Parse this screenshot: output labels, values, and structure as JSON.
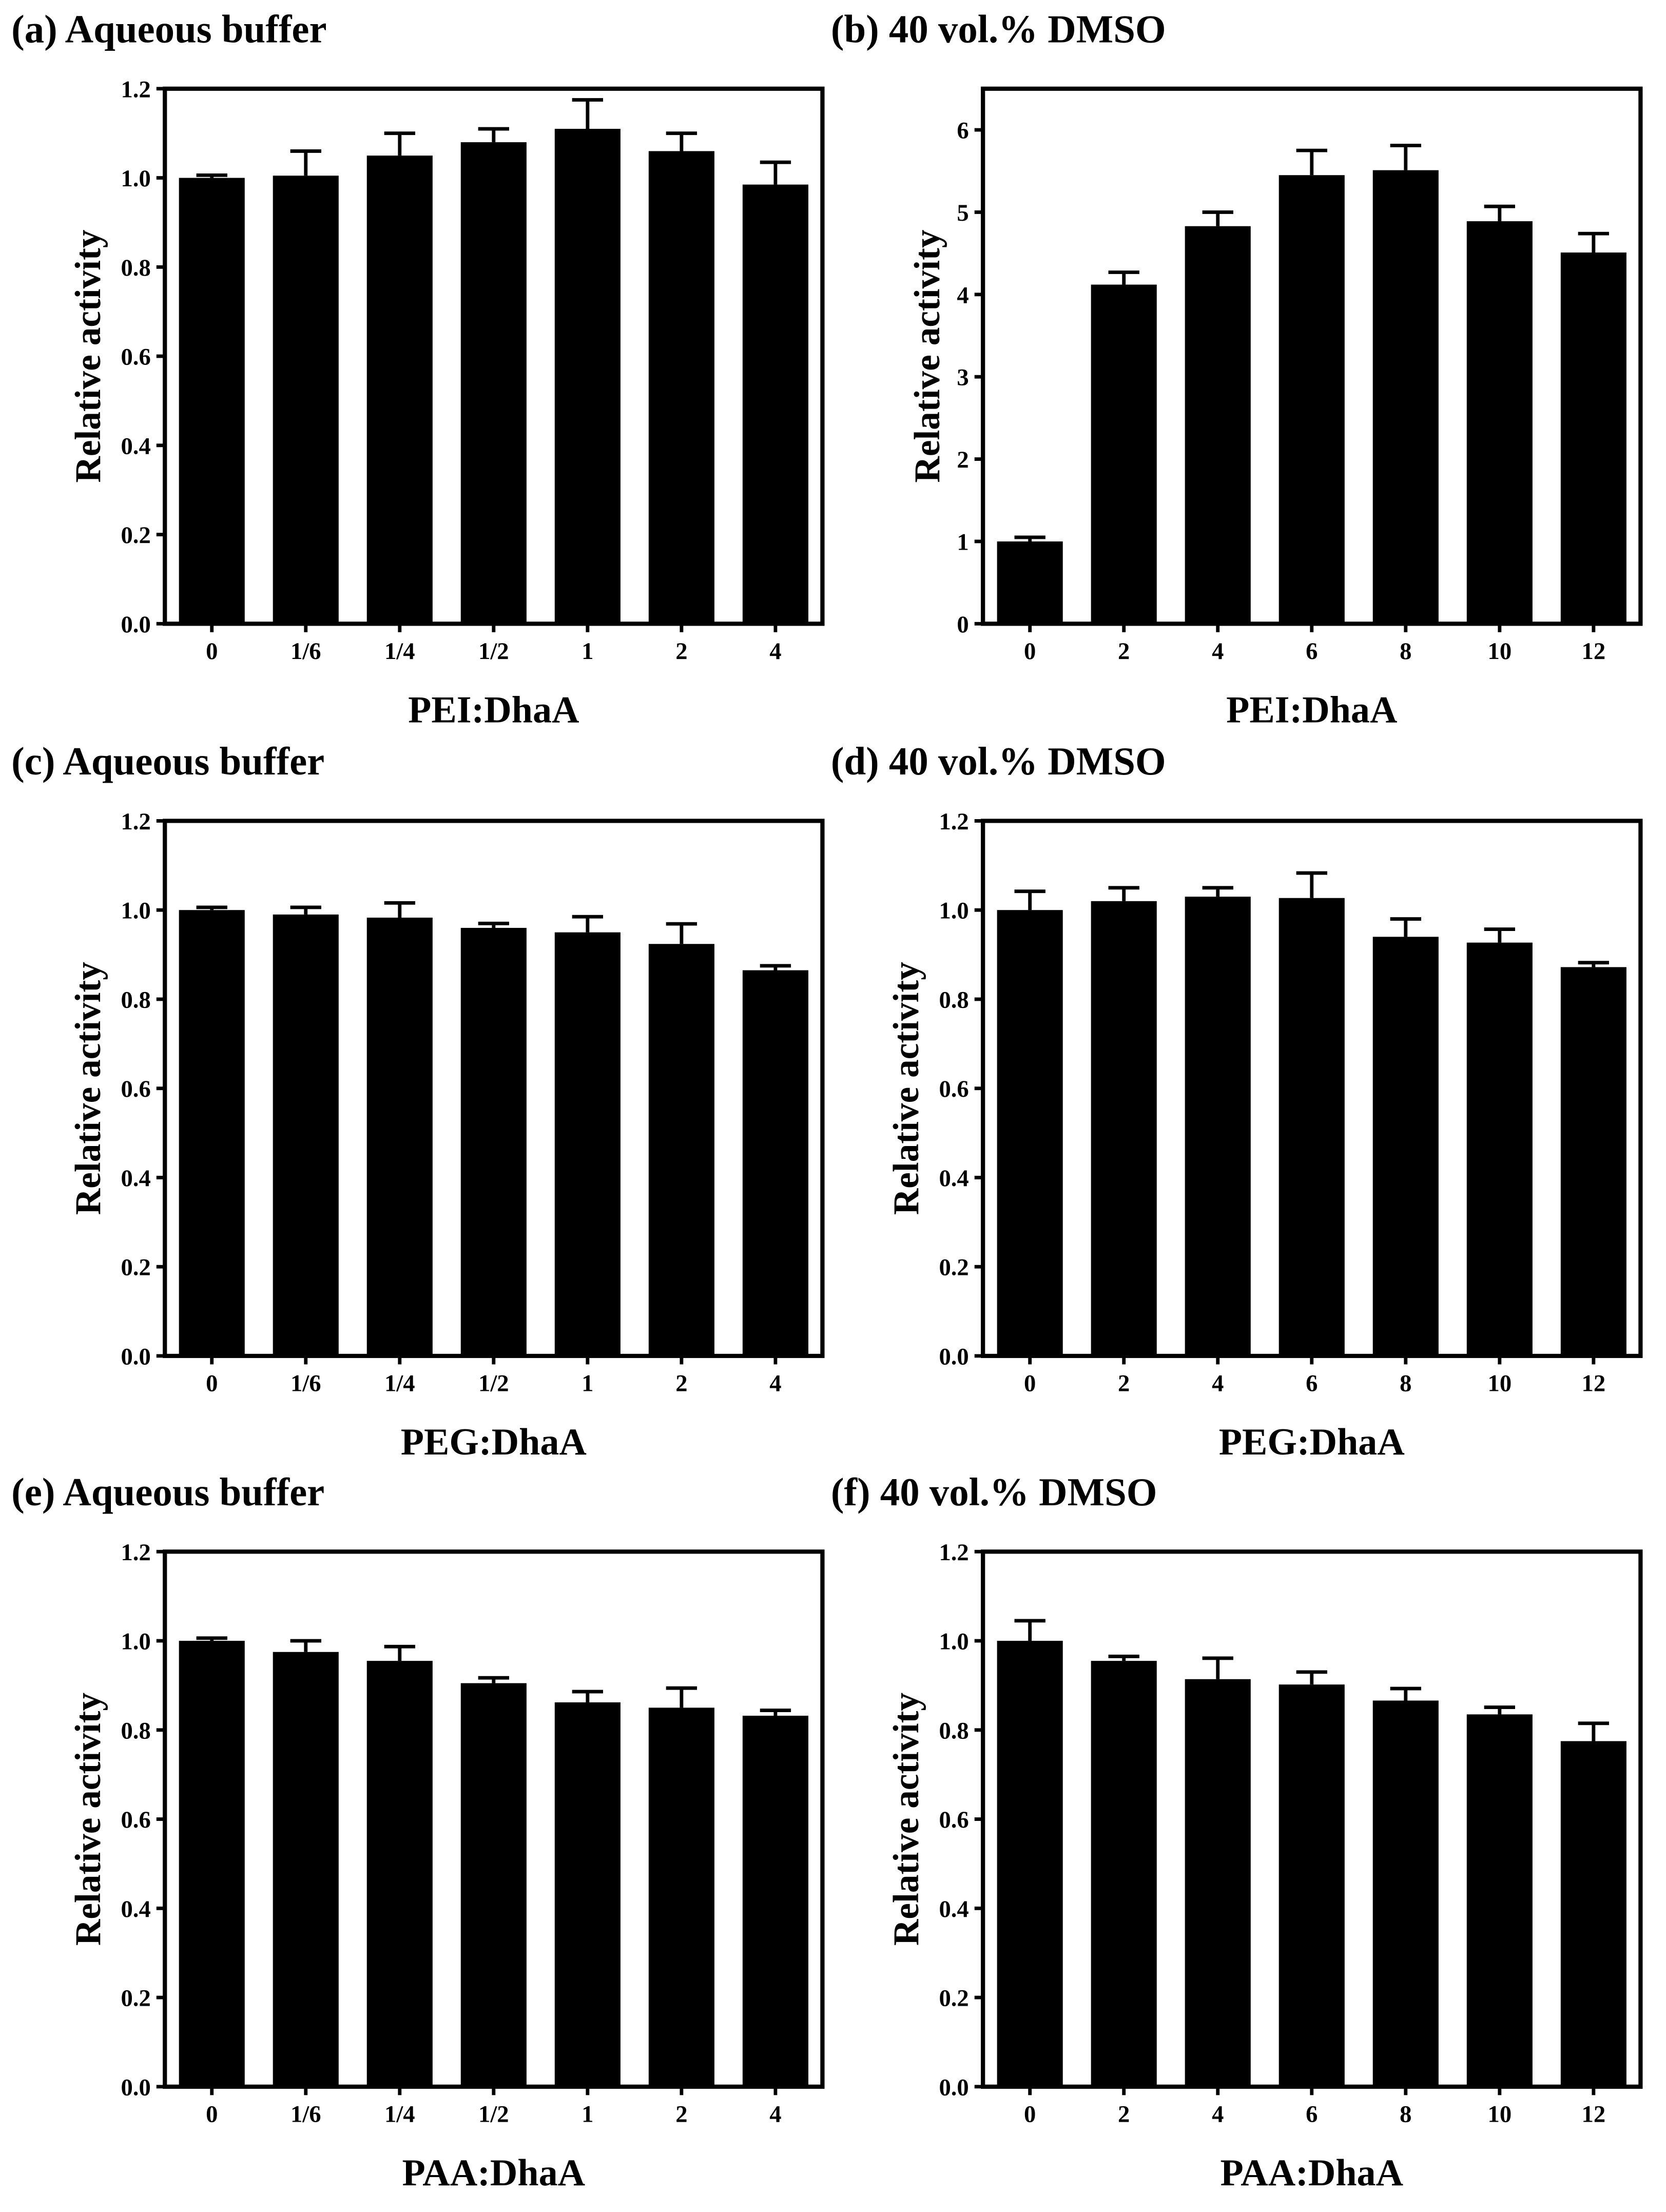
{
  "chart_data": [
    {
      "type": "bar",
      "title": "(a) Aqueous buffer",
      "xlabel": "PEI:DhaA",
      "ylabel": "Relative activity",
      "categories": [
        "0",
        "1/6",
        "1/4",
        "1/2",
        "1",
        "2",
        "4"
      ],
      "values": [
        1.0,
        1.005,
        1.05,
        1.08,
        1.11,
        1.06,
        0.985
      ],
      "errors": [
        0.006,
        0.055,
        0.05,
        0.03,
        0.065,
        0.04,
        0.05
      ],
      "ylim": [
        0,
        1.2
      ],
      "yticks": [
        0,
        0.2,
        0.4,
        0.6,
        0.8,
        1.0,
        1.2
      ],
      "ytick_labels": [
        "0.0",
        "0.2",
        "0.4",
        "0.6",
        "0.8",
        "1.0",
        "1.2"
      ],
      "color": "#000000"
    },
    {
      "type": "bar",
      "title": "(b) 40 vol.% DMSO",
      "xlabel": "PEI:DhaA",
      "ylabel": "Relative activity",
      "categories": [
        "0",
        "2",
        "4",
        "6",
        "8",
        "10",
        "12"
      ],
      "values": [
        1.0,
        4.12,
        4.83,
        5.45,
        5.51,
        4.89,
        4.51
      ],
      "errors": [
        0.05,
        0.15,
        0.17,
        0.3,
        0.3,
        0.18,
        0.23
      ],
      "ylim": [
        0,
        6.5
      ],
      "yticks": [
        0,
        1,
        2,
        3,
        4,
        5,
        6
      ],
      "ytick_labels": [
        "0",
        "1",
        "2",
        "3",
        "4",
        "5",
        "6"
      ],
      "color": "#000000"
    },
    {
      "type": "bar",
      "title": "(c) Aqueous buffer",
      "xlabel": "PEG:DhaA",
      "ylabel": "Relative activity",
      "categories": [
        "0",
        "1/6",
        "1/4",
        "1/2",
        "1",
        "2",
        "4"
      ],
      "values": [
        1.0,
        0.99,
        0.983,
        0.96,
        0.95,
        0.924,
        0.865
      ],
      "errors": [
        0.006,
        0.016,
        0.033,
        0.01,
        0.035,
        0.045,
        0.01
      ],
      "ylim": [
        0,
        1.2
      ],
      "yticks": [
        0,
        0.2,
        0.4,
        0.6,
        0.8,
        1.0,
        1.2
      ],
      "ytick_labels": [
        "0.0",
        "0.2",
        "0.4",
        "0.6",
        "0.8",
        "1.0",
        "1.2"
      ],
      "color": "#000000"
    },
    {
      "type": "bar",
      "title": "(d) 40 vol.% DMSO",
      "xlabel": "PEG:DhaA",
      "ylabel": "Relative activity",
      "categories": [
        "0",
        "2",
        "4",
        "6",
        "8",
        "10",
        "12"
      ],
      "values": [
        1.0,
        1.02,
        1.03,
        1.027,
        0.94,
        0.927,
        0.872
      ],
      "errors": [
        0.042,
        0.03,
        0.02,
        0.056,
        0.04,
        0.03,
        0.01
      ],
      "ylim": [
        0,
        1.2
      ],
      "yticks": [
        0,
        0.2,
        0.4,
        0.6,
        0.8,
        1.0,
        1.2
      ],
      "ytick_labels": [
        "0.0",
        "0.2",
        "0.4",
        "0.6",
        "0.8",
        "1.0",
        "1.2"
      ],
      "color": "#000000"
    },
    {
      "type": "bar",
      "title": "(e) Aqueous buffer",
      "xlabel": "PAA:DhaA",
      "ylabel": "Relative activity",
      "categories": [
        "0",
        "1/6",
        "1/4",
        "1/2",
        "1",
        "2",
        "4"
      ],
      "values": [
        1.0,
        0.975,
        0.955,
        0.905,
        0.862,
        0.85,
        0.832
      ],
      "errors": [
        0.006,
        0.025,
        0.032,
        0.012,
        0.024,
        0.044,
        0.012
      ],
      "ylim": [
        0,
        1.2
      ],
      "yticks": [
        0,
        0.2,
        0.4,
        0.6,
        0.8,
        1.0,
        1.2
      ],
      "ytick_labels": [
        "0.0",
        "0.2",
        "0.4",
        "0.6",
        "0.8",
        "1.0",
        "1.2"
      ],
      "color": "#000000"
    },
    {
      "type": "bar",
      "title": "(f) 40 vol.% DMSO",
      "xlabel": "PAA:DhaA",
      "ylabel": "Relative activity",
      "categories": [
        "0",
        "2",
        "4",
        "6",
        "8",
        "10",
        "12"
      ],
      "values": [
        1.0,
        0.955,
        0.914,
        0.902,
        0.866,
        0.835,
        0.775
      ],
      "errors": [
        0.045,
        0.01,
        0.047,
        0.028,
        0.027,
        0.016,
        0.04
      ],
      "ylim": [
        0,
        1.2
      ],
      "yticks": [
        0,
        0.2,
        0.4,
        0.6,
        0.8,
        1.0,
        1.2
      ],
      "ytick_labels": [
        "0.0",
        "0.2",
        "0.4",
        "0.6",
        "0.8",
        "1.0",
        "1.2"
      ],
      "color": "#000000"
    }
  ]
}
